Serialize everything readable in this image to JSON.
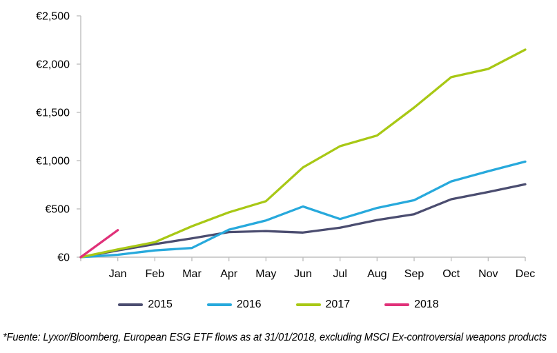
{
  "page": {
    "background": "#ffffff",
    "axis_color": "#BFBFBF",
    "label_color": "#000000"
  },
  "chart_data": {
    "type": "line",
    "title": "",
    "xlabel": "",
    "ylabel": "",
    "categories": [
      "Jan",
      "Feb",
      "Mar",
      "Apr",
      "May",
      "Jun",
      "Jul",
      "Aug",
      "Sep",
      "Oct",
      "Nov",
      "Dec"
    ],
    "series": [
      {
        "name": "2015",
        "color": "#4B4D70",
        "values": [
          70,
          135,
          195,
          260,
          270,
          255,
          305,
          385,
          445,
          600,
          675,
          755
        ]
      },
      {
        "name": "2016",
        "color": "#27A9DC",
        "values": [
          25,
          70,
          95,
          285,
          380,
          525,
          395,
          510,
          590,
          785,
          890,
          990
        ]
      },
      {
        "name": "2017",
        "color": "#A8C815",
        "values": [
          80,
          155,
          320,
          465,
          580,
          930,
          1150,
          1260,
          1550,
          1865,
          1950,
          2150
        ]
      },
      {
        "name": "2018",
        "color": "#E03179",
        "values": [
          280
        ]
      }
    ],
    "series_start_at_zero_on_y_axis": true,
    "y_ticks": [
      {
        "value": 0,
        "label": "€0"
      },
      {
        "value": 500,
        "label": "€500"
      },
      {
        "value": 1000,
        "label": "€1,000"
      },
      {
        "value": 1500,
        "label": "€1,500"
      },
      {
        "value": 2000,
        "label": "€2,000"
      },
      {
        "value": 2500,
        "label": "€2,500"
      }
    ],
    "ylim": [
      0,
      2500
    ],
    "grid": false,
    "legend_position": "bottom"
  },
  "footnote": {
    "text": "*Fuente: Lyxor/Bloomberg, European ESG ETF flows as at 31/01/2018, excluding MSCI Ex-controversial weapons products"
  }
}
